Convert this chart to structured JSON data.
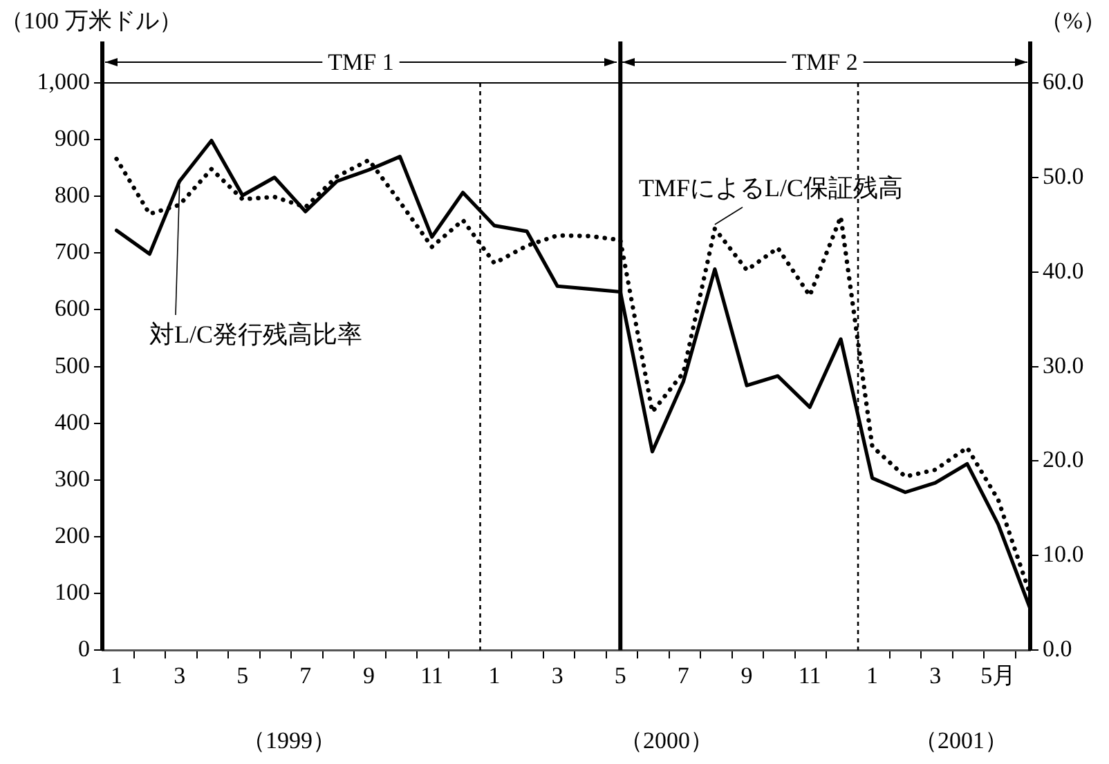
{
  "chart_data": {
    "type": "line",
    "x": [
      "1999-01-15",
      "1999-02-15",
      "1999-03-15",
      "1999-04-15",
      "1999-05-15",
      "1999-06-15",
      "1999-07-15",
      "1999-08-15",
      "1999-09-15",
      "1999-10-15",
      "1999-11-15",
      "1999-12-15",
      "2000-01-15",
      "2000-02-15",
      "2000-03-15",
      "2000-04-15",
      "2000-05-15",
      "2000-06-15",
      "2000-07-15",
      "2000-08-15",
      "2000-09-15",
      "2000-10-15",
      "2000-11-15",
      "2000-12-15",
      "2001-01-15",
      "2001-02-15",
      "2001-03-15",
      "2001-04-15",
      "2001-05-15",
      "2001-06-15"
    ],
    "series": [
      {
        "name": "TMFによるL/C保証残高",
        "color": "#000000",
        "line_style": "dotted",
        "values": [
          866,
          769,
          785,
          848,
          795,
          799,
          781,
          835,
          864,
          790,
          711,
          758,
          682,
          713,
          731,
          730,
          723,
          420,
          489,
          743,
          670,
          709,
          625,
          764,
          359,
          306,
          318,
          357,
          265,
          98
        ]
      },
      {
        "name": "対L/C発行残高比率",
        "color": "#000000",
        "line_style": "solid",
        "axis": "y2",
        "values": [
          44.4,
          41.9,
          49.6,
          53.9,
          48.1,
          50.0,
          46.4,
          49.6,
          50.8,
          52.2,
          43.7,
          48.4,
          44.9,
          44.3,
          38.5,
          38.2,
          37.9,
          21.0,
          28.4,
          40.3,
          28.0,
          29.0,
          25.7,
          32.9,
          18.2,
          16.7,
          17.7,
          19.7,
          13.3,
          4.4
        ]
      }
    ],
    "xlim": [
      "1999-01-01",
      "2001-06-15"
    ],
    "xticks": [
      {
        "value": "1999-01-15",
        "label": "1"
      },
      {
        "value": "1999-03-15",
        "label": "3"
      },
      {
        "value": "1999-05-15",
        "label": "5"
      },
      {
        "value": "1999-07-15",
        "label": "7"
      },
      {
        "value": "1999-09-15",
        "label": "9"
      },
      {
        "value": "1999-11-15",
        "label": "11"
      },
      {
        "value": "2000-01-15",
        "label": "1"
      },
      {
        "value": "2000-03-15",
        "label": "3"
      },
      {
        "value": "2000-05-15",
        "label": "5"
      },
      {
        "value": "2000-07-15",
        "label": "7"
      },
      {
        "value": "2000-09-15",
        "label": "9"
      },
      {
        "value": "2000-11-15",
        "label": "11"
      },
      {
        "value": "2001-01-15",
        "label": "1"
      },
      {
        "value": "2001-03-15",
        "label": "3"
      },
      {
        "value": "2001-05-15",
        "label": "5月"
      },
      {
        "value": "1999-02-01",
        "label": null
      },
      {
        "value": "1999-03-01",
        "label": null
      },
      {
        "value": "1999-04-01",
        "label": null
      },
      {
        "value": "1999-05-01",
        "label": null
      },
      {
        "value": "1999-06-01",
        "label": null
      },
      {
        "value": "1999-07-01",
        "label": null
      },
      {
        "value": "1999-08-01",
        "label": null
      },
      {
        "value": "1999-09-01",
        "label": null
      },
      {
        "value": "1999-10-01",
        "label": null
      },
      {
        "value": "1999-11-01",
        "label": null
      },
      {
        "value": "1999-12-01",
        "label": null
      },
      {
        "value": "2000-02-01",
        "label": null
      },
      {
        "value": "2000-03-01",
        "label": null
      },
      {
        "value": "2000-04-01",
        "label": null
      },
      {
        "value": "2000-05-01",
        "label": null
      },
      {
        "value": "2000-06-01",
        "label": null
      },
      {
        "value": "2000-07-01",
        "label": null
      },
      {
        "value": "2000-08-01",
        "label": null
      },
      {
        "value": "2000-09-01",
        "label": null
      },
      {
        "value": "2000-10-01",
        "label": null
      },
      {
        "value": "2000-11-01",
        "label": null
      },
      {
        "value": "2000-12-01",
        "label": null
      },
      {
        "value": "2001-02-01",
        "label": null
      },
      {
        "value": "2001-03-01",
        "label": null
      },
      {
        "value": "2001-04-01",
        "label": null
      },
      {
        "value": "2001-05-01",
        "label": null
      },
      {
        "value": "2001-06-01",
        "label": null
      }
    ],
    "ylim": [
      0,
      1000
    ],
    "yticks": [
      0,
      100,
      200,
      300,
      400,
      500,
      600,
      700,
      800,
      900,
      {
        "value": 1000,
        "label": "1,000"
      }
    ],
    "y2lim": [
      0,
      60
    ],
    "y2ticks": [
      {
        "value": 0,
        "label": "0.0"
      },
      {
        "value": 10,
        "label": "10.0"
      },
      {
        "value": 20,
        "label": "20.0"
      },
      {
        "value": 30,
        "label": "30.0"
      },
      {
        "value": 40,
        "label": "40.0"
      },
      {
        "value": 50,
        "label": "50.0"
      },
      {
        "value": 60,
        "label": "60.0"
      }
    ],
    "ylabel": "（100 万米ドル）",
    "y2label": "（%）",
    "ref_lines": [
      {
        "axis": "x",
        "value": "2000-05-15",
        "line_style": "solid"
      },
      {
        "axis": "x",
        "value": "2000-01-01",
        "line_style": "dashed"
      },
      {
        "axis": "x",
        "value": "2001-01-01",
        "line_style": "dashed"
      }
    ],
    "annotations": [
      "TMF 1",
      "TMF 2",
      "（1999）",
      "（2000）",
      "（2001）"
    ],
    "marker": "none",
    "grid": false,
    "legend": false
  }
}
